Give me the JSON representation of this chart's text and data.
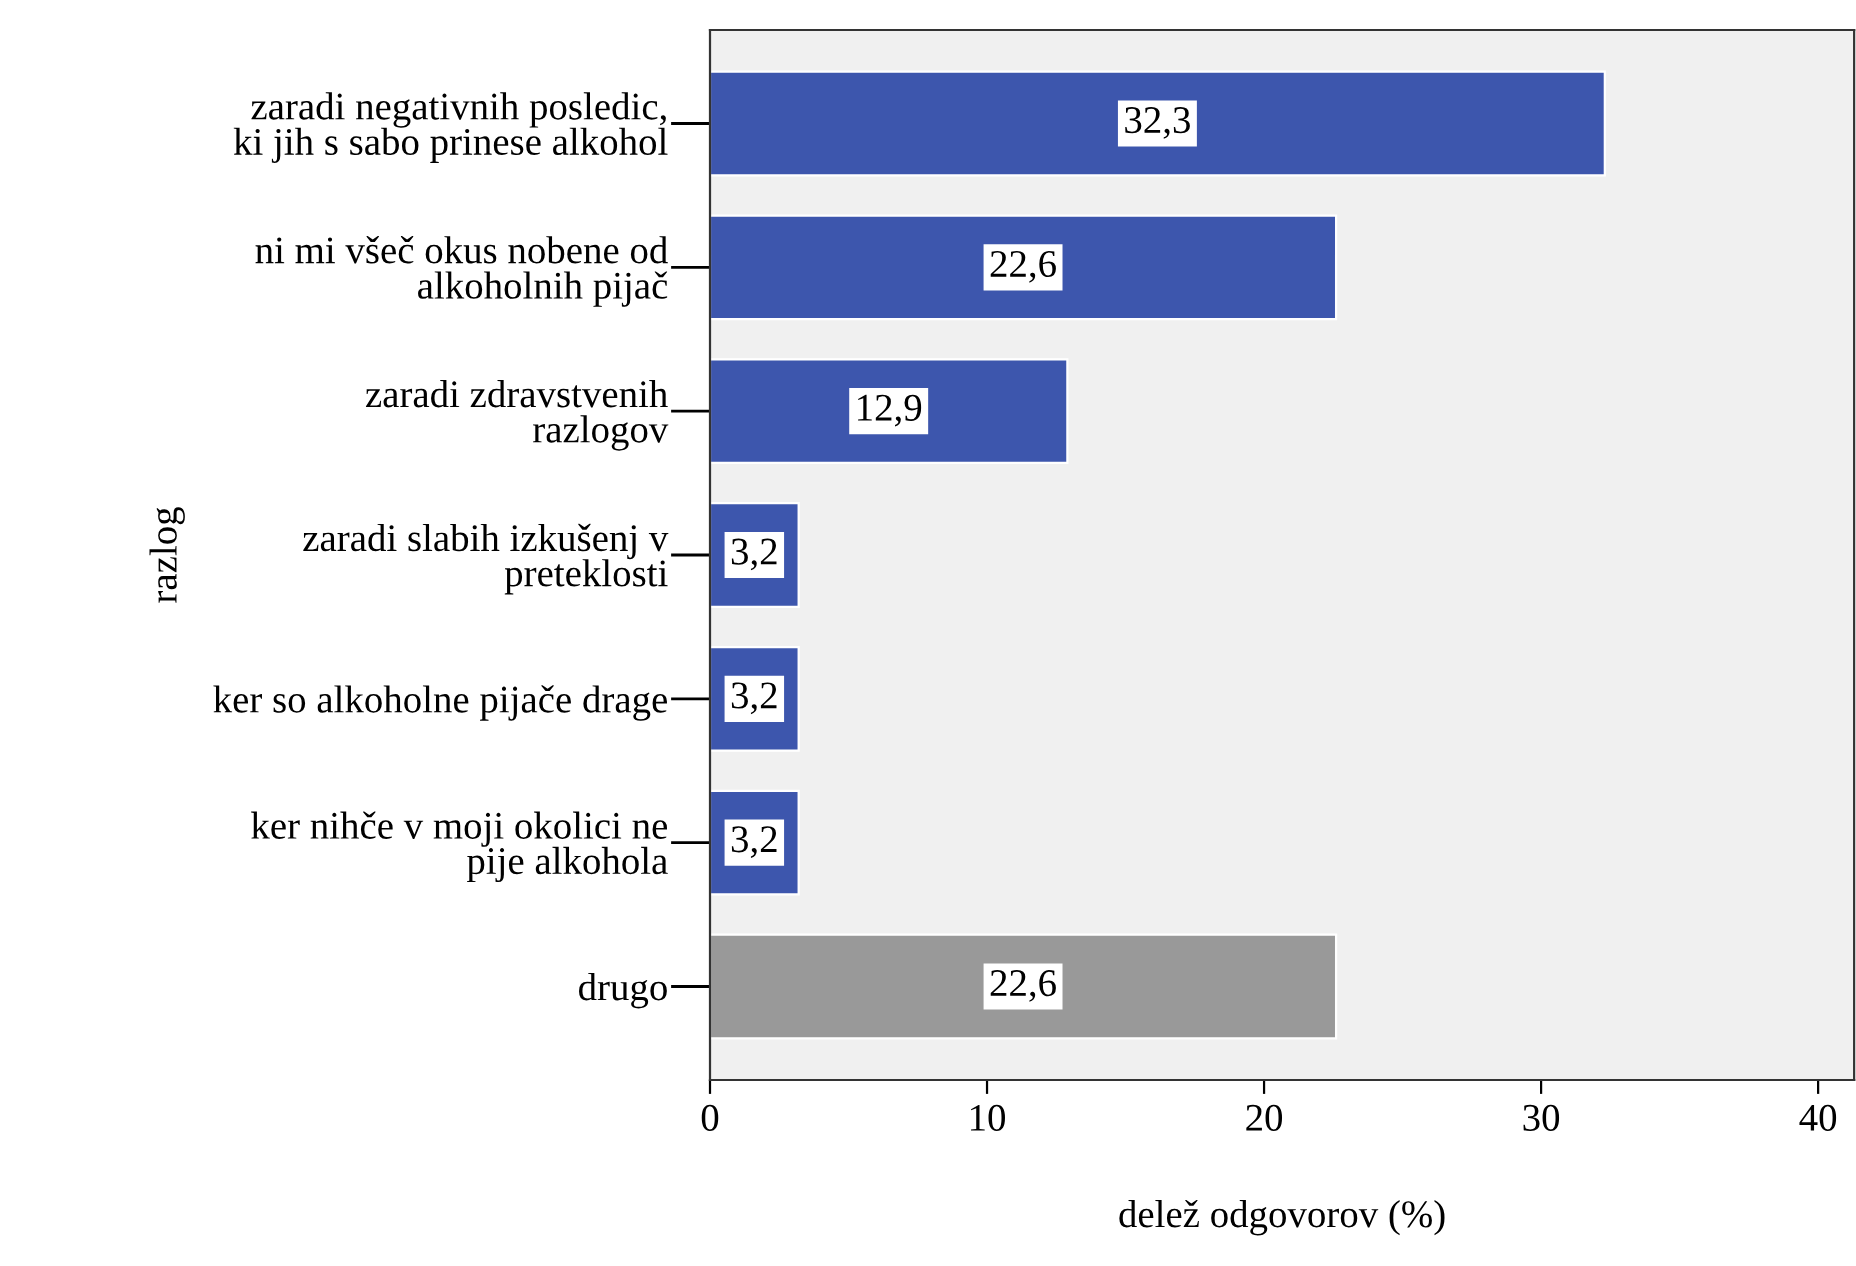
{
  "chart_data": {
    "type": "bar",
    "orientation": "horizontal",
    "xlabel": "delež odgovorov (%)",
    "ylabel": "razlog",
    "categories": [
      "zaradi negativnih posledic,\nki jih s sabo prinese alkohol",
      "ni mi všeč okus nobene od\nalkoholnih pijač",
      "zaradi zdravstvenih\nrazlogov",
      "zaradi slabih izkušenj v\npreteklosti",
      "ker so alkoholne pijače drage",
      "ker nihče v moji okolici ne\npije alkohola",
      "drugo"
    ],
    "values": [
      32.3,
      22.6,
      12.9,
      3.2,
      3.2,
      3.2,
      22.6
    ],
    "value_labels": [
      "32,3",
      "22,6",
      "12,9",
      "3,2",
      "3,2",
      "3,2",
      "22,6"
    ],
    "colors": [
      "#3d56ad",
      "#3d56ad",
      "#3d56ad",
      "#3d56ad",
      "#3d56ad",
      "#3d56ad",
      "#999999"
    ],
    "xlim": [
      0,
      41.3
    ],
    "xticks": [
      0,
      10,
      20,
      30,
      40
    ],
    "grid": false
  }
}
